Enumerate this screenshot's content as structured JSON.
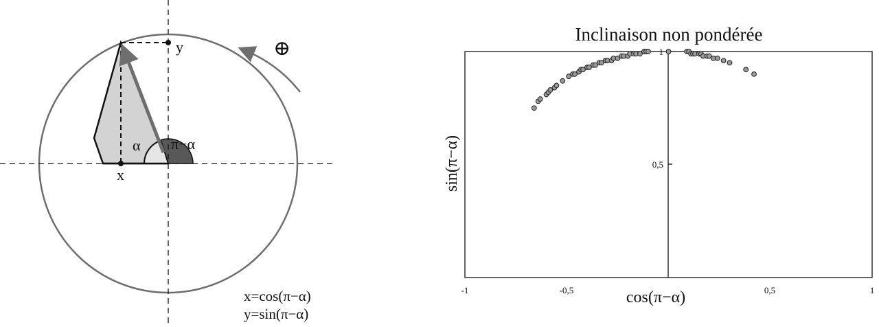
{
  "diagram": {
    "label_x": "x",
    "label_y": "y",
    "label_alpha": "α",
    "label_pi_minus_alpha": "π−α",
    "label_positive": "⊕",
    "formula_x": "x=cos(π−α)",
    "formula_y": "y=sin(π−α)",
    "colors": {
      "circle": "#6e6e6e",
      "polygon_fill": "#d3d3d3",
      "arrow": "#6e6e6e",
      "angle_pi_minus_alpha": "#585858"
    }
  },
  "chart_data": {
    "type": "scatter",
    "title": "Inclinaison non pondérée",
    "xlabel": "cos(π−α)",
    "ylabel": "sin(π−α)",
    "xlim": [
      -1,
      1
    ],
    "ylim": [
      0,
      1
    ],
    "x_ticks": [
      "-1",
      "-0,5",
      "0,5",
      "1"
    ],
    "y_ticks": [
      "0,5",
      "1"
    ],
    "grid": false,
    "marker_color": "#9a9a9a",
    "x": [
      -0.66,
      -0.64,
      -0.63,
      -0.6,
      -0.59,
      -0.58,
      -0.56,
      -0.55,
      -0.52,
      -0.49,
      -0.47,
      -0.46,
      -0.44,
      -0.43,
      -0.42,
      -0.4,
      -0.39,
      -0.37,
      -0.36,
      -0.34,
      -0.33,
      -0.31,
      -0.3,
      -0.28,
      -0.27,
      -0.25,
      -0.23,
      -0.22,
      -0.2,
      -0.19,
      -0.17,
      -0.16,
      -0.14,
      -0.12,
      -0.11,
      -0.1,
      0.0,
      0.09,
      0.1,
      0.11,
      0.12,
      0.13,
      0.15,
      0.16,
      0.17,
      0.19,
      0.2,
      0.22,
      0.24,
      0.27,
      0.3,
      0.38,
      0.42
    ],
    "y": [
      0.75,
      0.78,
      0.79,
      0.81,
      0.82,
      0.83,
      0.84,
      0.85,
      0.87,
      0.89,
      0.9,
      0.9,
      0.91,
      0.92,
      0.92,
      0.93,
      0.93,
      0.94,
      0.94,
      0.95,
      0.95,
      0.96,
      0.96,
      0.96,
      0.97,
      0.97,
      0.98,
      0.98,
      0.98,
      0.99,
      0.99,
      0.99,
      0.99,
      1.0,
      1.0,
      1.0,
      1.0,
      1.0,
      1.0,
      0.99,
      0.99,
      0.99,
      0.99,
      0.99,
      0.98,
      0.98,
      0.98,
      0.97,
      0.97,
      0.96,
      0.95,
      0.92,
      0.9
    ]
  }
}
